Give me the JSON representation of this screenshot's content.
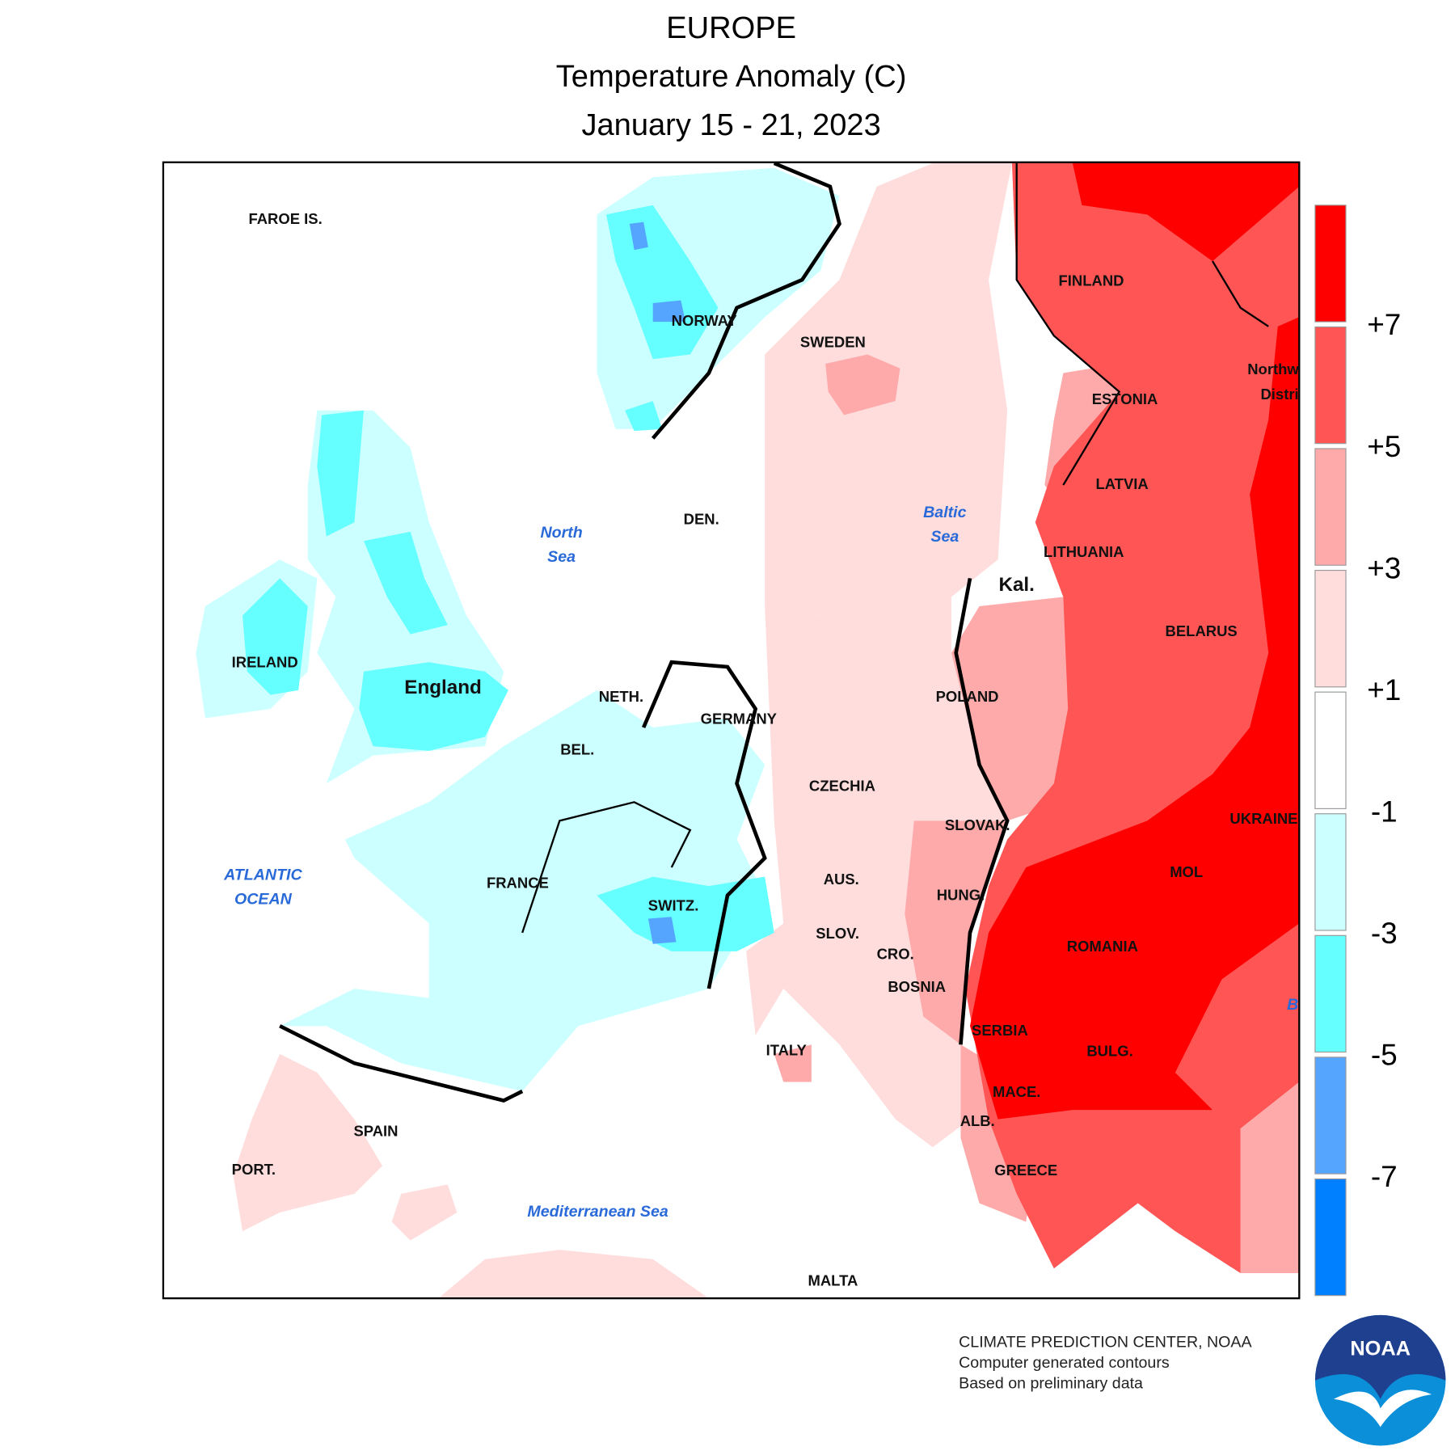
{
  "title": [
    "EUROPE",
    "Temperature Anomaly (C)",
    "January 15 - 21, 2023"
  ],
  "map_labels": [
    "FAROE IS.",
    "NORWAY",
    "SWEDEN",
    "FINLAND",
    "ESTONIA",
    "LATVIA",
    "LITHUANIA",
    "BELARUS",
    "POLAND",
    "DEN.",
    "NETH.",
    "GERMANY",
    "BEL.",
    "CZECHIA",
    "SLOVAK.",
    "UKRAINE",
    "MOL",
    "AUS.",
    "HUNG.",
    "FRANCE",
    "SWITZ.",
    "SLOV.",
    "CRO.",
    "ROMANIA",
    "BOSNIA",
    "SERBIA",
    "BULG.",
    "ITALY",
    "MACE.",
    "ALB.",
    "SPAIN",
    "PORT.",
    "GREECE",
    "MALTA",
    "IRELAND",
    "Northw",
    "Distri"
  ],
  "big_labels": [
    "England",
    "Kal."
  ],
  "sea_labels": [
    [
      "North",
      "Sea"
    ],
    [
      "Baltic",
      "Sea"
    ],
    [
      "ATLANTIC",
      "OCEAN"
    ],
    [
      "Mediterranean Sea"
    ],
    [
      "B"
    ]
  ],
  "legend": {
    "colors": [
      "#ff0000",
      "#ff5555",
      "#ffaaaa",
      "#ffdddd",
      "#ffffff",
      "#ccffff",
      "#66ffff",
      "#55a5ff",
      "#0080ff"
    ],
    "labels": [
      "+7",
      "+5",
      "+3",
      "+1",
      "-1",
      "-3",
      "-5",
      "-7"
    ]
  },
  "footer": [
    "CLIMATE PREDICTION CENTER, NOAA",
    "Computer generated contours",
    "Based on preliminary data"
  ],
  "logo": "NOAA"
}
